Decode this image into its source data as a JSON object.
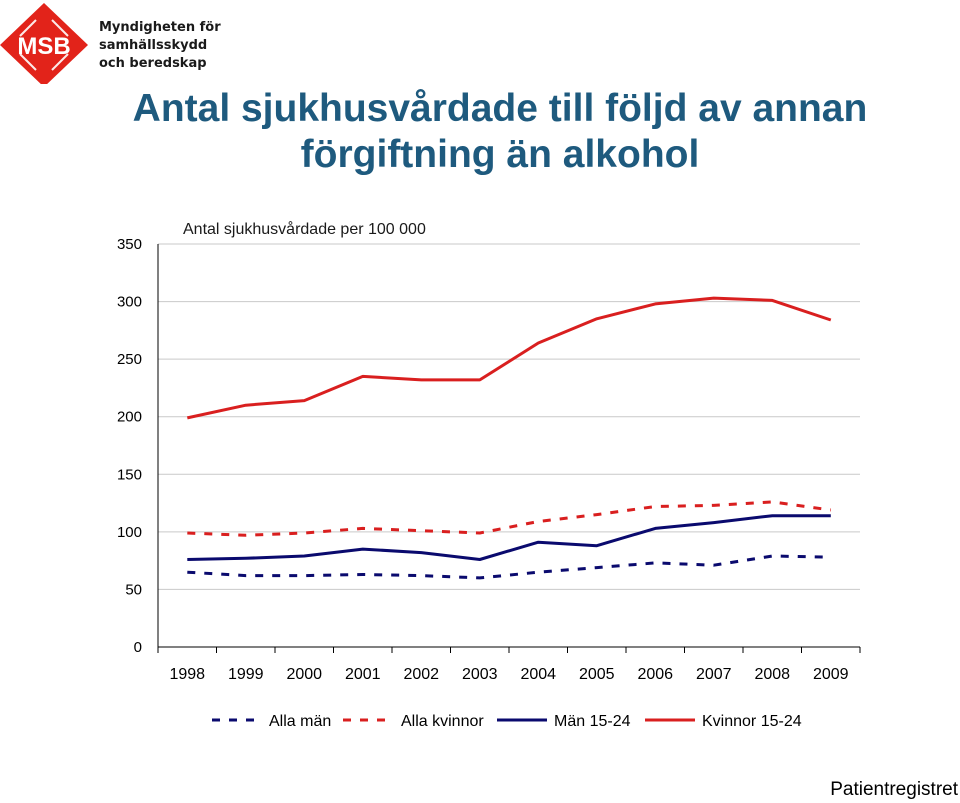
{
  "logo": {
    "text": "MSB",
    "org_lines": [
      "Myndigheten för",
      "samhällsskydd",
      "och beredskap"
    ],
    "color": "#e2231a"
  },
  "title_lines": [
    "Antal sjukhusvårdade till följd av annan",
    "förgiftning än alkohol"
  ],
  "source": "Patientregistret",
  "chart_data": {
    "type": "line",
    "subtitle": "Antal sjukhusvårdade per 100 000",
    "categories": [
      "1998",
      "1999",
      "2000",
      "2001",
      "2002",
      "2003",
      "2004",
      "2005",
      "2006",
      "2007",
      "2008",
      "2009"
    ],
    "ylim": [
      0,
      350
    ],
    "yticks": [
      0,
      50,
      100,
      150,
      200,
      250,
      300,
      350
    ],
    "grid": true,
    "legend_position": "bottom",
    "series": [
      {
        "name": "Alla män",
        "color": "#0a0a6e",
        "dashed": true,
        "values": [
          65,
          62,
          62,
          63,
          62,
          60,
          65,
          69,
          73,
          71,
          79,
          78
        ]
      },
      {
        "name": "Alla kvinnor",
        "color": "#d91f1f",
        "dashed": true,
        "values": [
          99,
          97,
          99,
          103,
          101,
          99,
          109,
          115,
          122,
          123,
          126,
          119
        ]
      },
      {
        "name": "Män 15-24",
        "color": "#0a0a6e",
        "dashed": false,
        "values": [
          76,
          77,
          79,
          85,
          82,
          76,
          91,
          88,
          103,
          108,
          114,
          114
        ]
      },
      {
        "name": "Kvinnor 15-24",
        "color": "#d91f1f",
        "dashed": false,
        "values": [
          199,
          210,
          214,
          235,
          232,
          232,
          264,
          285,
          298,
          303,
          301,
          284
        ]
      }
    ]
  }
}
